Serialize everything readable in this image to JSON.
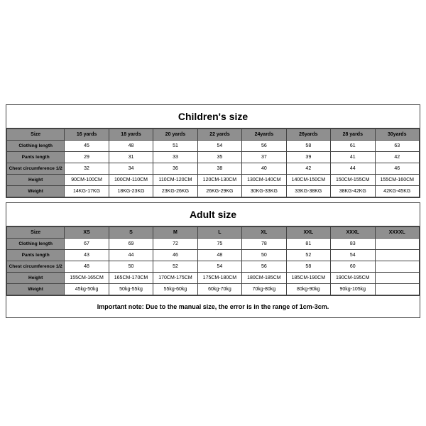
{
  "children": {
    "title": "Children's size",
    "headers": [
      "Size",
      "16 yards",
      "18 yards",
      "20 yards",
      "22 yards",
      "24yards",
      "26yards",
      "28 yards",
      "30yards"
    ],
    "rows": [
      {
        "label": "Clothing length",
        "cells": [
          "45",
          "48",
          "51",
          "54",
          "56",
          "58",
          "61",
          "63"
        ]
      },
      {
        "label": "Pants length",
        "cells": [
          "29",
          "31",
          "33",
          "35",
          "37",
          "39",
          "41",
          "42"
        ]
      },
      {
        "label": "Chest circumference 1/2",
        "cells": [
          "32",
          "34",
          "36",
          "38",
          "40",
          "42",
          "44",
          "46"
        ]
      },
      {
        "label": "Height",
        "cells": [
          "90CM-100CM",
          "100CM-110CM",
          "110CM-120CM",
          "120CM-130CM",
          "130CM-140CM",
          "140CM-150CM",
          "150CM-155CM",
          "155CM-160CM"
        ]
      },
      {
        "label": "Weight",
        "cells": [
          "14KG-17KG",
          "18KG-23KG",
          "23KG-26KG",
          "26KG-29KG",
          "30KG-33KG",
          "33KG-38KG",
          "38KG-42KG",
          "42KG-45KG"
        ]
      }
    ]
  },
  "adult": {
    "title": "Adult size",
    "headers": [
      "Size",
      "XS",
      "S",
      "M",
      "L",
      "XL",
      "XXL",
      "XXXL",
      "XXXXL"
    ],
    "rows": [
      {
        "label": "Clothing length",
        "cells": [
          "67",
          "69",
          "72",
          "75",
          "78",
          "81",
          "83",
          ""
        ]
      },
      {
        "label": "Pants length",
        "cells": [
          "43",
          "44",
          "46",
          "48",
          "50",
          "52",
          "54",
          ""
        ]
      },
      {
        "label": "Chest circumference 1/2",
        "cells": [
          "48",
          "50",
          "52",
          "54",
          "56",
          "58",
          "60",
          ""
        ]
      },
      {
        "label": "Height",
        "cells": [
          "155CM-165CM",
          "165CM-170CM",
          "170CM-175CM",
          "175CM-180CM",
          "180CM-185CM",
          "185CM-190CM",
          "190CM-195CM",
          ""
        ]
      },
      {
        "label": "Weight",
        "cells": [
          "45kg-50kg",
          "50kg-55kg",
          "55kg-60kg",
          "60kg-70kg",
          "70kg-80kg",
          "80kg-90kg",
          "90kg-105kg",
          ""
        ]
      }
    ],
    "note": "Important note: Due to the manual size, the error is in the range of 1cm-3cm."
  },
  "colors": {
    "header_bg": "#8f8f8f",
    "border": "#444444",
    "background": "#ffffff"
  }
}
